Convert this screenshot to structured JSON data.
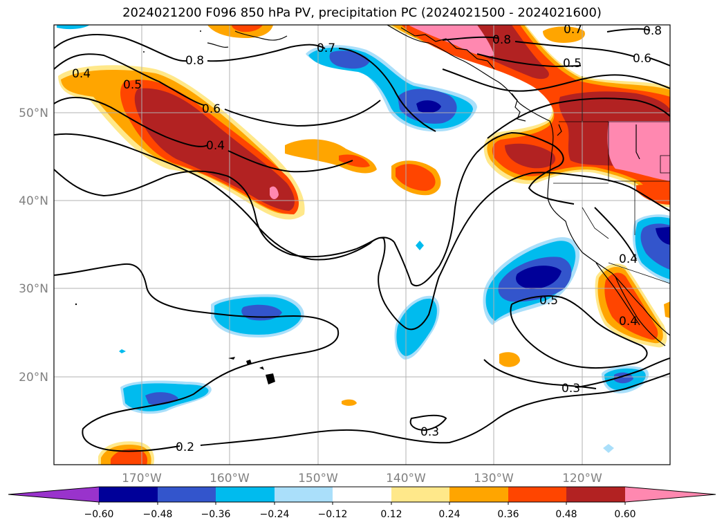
{
  "title": "2024021200 F096 850 hPa PV, precipitation PC (2024021500 - 2024021600)",
  "latitude_labels": [
    "50°N",
    "40°N",
    "30°N",
    "20°N"
  ],
  "longitude_labels": [
    "170°W",
    "160°W",
    "150°W",
    "140°W",
    "130°W",
    "120°W"
  ],
  "colorbar": {
    "colors": [
      "#9933cc",
      "#000099",
      "#3355cc",
      "#00bbee",
      "#aadffa",
      "#ffffff",
      "#ffe88a",
      "#ffa500",
      "#ff4500",
      "#b22222",
      "#ff88b0",
      "#ff88b0"
    ],
    "ticks": [
      "−0.60",
      "−0.48",
      "−0.36",
      "−0.24",
      "−0.12",
      "0.12",
      "0.24",
      "0.36",
      "0.48",
      "0.60"
    ]
  },
  "contour_labels": [
    "0.8",
    "0.7",
    "0.8",
    "0.7",
    "0.8",
    "0.6",
    "0.5",
    "0.5",
    "0.4",
    "0.6",
    "0.4",
    "0.5",
    "0.4",
    "0.3",
    "0.3",
    "0.2",
    "0.4"
  ]
}
